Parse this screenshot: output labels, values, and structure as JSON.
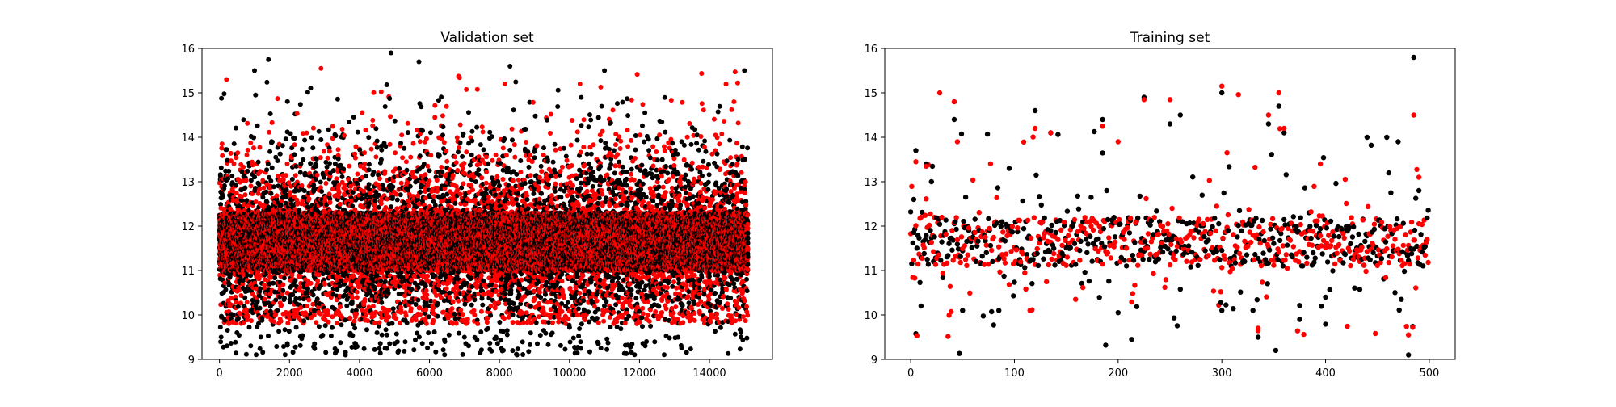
{
  "figure": {
    "background": "#ffffff",
    "marker_colors": [
      "#000000",
      "#ff0000"
    ]
  },
  "chart_data": [
    {
      "type": "scatter",
      "title": "Validation set",
      "xlabel": "",
      "ylabel": "",
      "xlim": [
        -500,
        15800
      ],
      "ylim": [
        9,
        16
      ],
      "xticks": [
        0,
        2000,
        4000,
        6000,
        8000,
        10000,
        12000,
        14000
      ],
      "yticks": [
        9,
        10,
        11,
        12,
        13,
        14,
        15,
        16
      ],
      "grid": false,
      "legend": "none",
      "n_points": 15100,
      "series": [
        {
          "color": "#000000",
          "distribution": {
            "center": 11.6,
            "core_low": 11.0,
            "core_high": 12.3,
            "min": 9.1,
            "max": 15.9
          },
          "outliers": [
            [
              3600,
              9.1
            ],
            [
              8500,
              9.1
            ],
            [
              12200,
              9.4
            ],
            [
              4900,
              15.9
            ],
            [
              1400,
              15.75
            ],
            [
              5700,
              15.7
            ],
            [
              8300,
              15.6
            ],
            [
              11000,
              15.5
            ],
            [
              15000,
              15.5
            ],
            [
              1000,
              15.5
            ],
            [
              13100,
              9.5
            ],
            [
              7900,
              9.5
            ],
            [
              7000,
              9.5
            ],
            [
              4500,
              9.6
            ],
            [
              500,
              9.6
            ]
          ]
        },
        {
          "color": "#ff0000",
          "distribution": {
            "center": 11.6,
            "core_low": 11.0,
            "core_high": 12.3,
            "min": 9.8,
            "max": 15.5
          },
          "outliers": [
            [
              2900,
              15.55
            ],
            [
              200,
              15.3
            ],
            [
              10300,
              15.2
            ],
            [
              14700,
              14.8
            ],
            [
              9700,
              10.0
            ],
            [
              13500,
              9.9
            ]
          ]
        }
      ]
    },
    {
      "type": "scatter",
      "title": "Training set",
      "xlabel": "",
      "ylabel": "",
      "xlim": [
        -25,
        525
      ],
      "ylim": [
        9,
        16
      ],
      "xticks": [
        0,
        100,
        200,
        300,
        400,
        500
      ],
      "yticks": [
        9,
        10,
        11,
        12,
        13,
        14,
        15,
        16
      ],
      "grid": false,
      "legend": "none",
      "n_points": 500,
      "series": [
        {
          "color": "#000000",
          "distribution": {
            "center": 11.6,
            "core_low": 11.1,
            "core_high": 12.2,
            "min": 9.1,
            "max": 15.8
          },
          "highlights": [
            [
              3,
              12.6
            ],
            [
              5,
              13.7
            ],
            [
              10,
              10.2
            ],
            [
              15,
              13.4
            ],
            [
              20,
              13.0
            ],
            [
              42,
              14.4
            ],
            [
              50,
              10.1
            ],
            [
              85,
              10.1
            ],
            [
              95,
              13.3
            ],
            [
              120,
              14.6
            ],
            [
              135,
              14.1
            ],
            [
              185,
              14.4
            ],
            [
              225,
              14.9
            ],
            [
              250,
              14.3
            ],
            [
              260,
              14.5
            ],
            [
              300,
              15.0
            ],
            [
              300,
              10.1
            ],
            [
              330,
              10.1
            ],
            [
              335,
              9.5
            ],
            [
              345,
              14.3
            ],
            [
              355,
              14.7
            ],
            [
              360,
              14.1
            ],
            [
              375,
              9.9
            ],
            [
              400,
              10.4
            ],
            [
              440,
              14.0
            ],
            [
              470,
              13.9
            ],
            [
              480,
              9.1
            ],
            [
              485,
              15.8
            ],
            [
              490,
              12.8
            ]
          ]
        },
        {
          "color": "#ff0000",
          "distribution": {
            "center": 11.6,
            "core_low": 11.1,
            "core_high": 12.2,
            "min": 9.5,
            "max": 15.2
          },
          "highlights": [
            [
              5,
              13.45
            ],
            [
              15,
              13.35
            ],
            [
              42,
              14.8
            ],
            [
              45,
              13.9
            ],
            [
              120,
              14.2
            ],
            [
              135,
              14.1
            ],
            [
              185,
              14.25
            ],
            [
              200,
              13.9
            ],
            [
              225,
              14.85
            ],
            [
              250,
              14.85
            ],
            [
              300,
              15.15
            ],
            [
              305,
              13.65
            ],
            [
              335,
              9.7
            ],
            [
              345,
              14.5
            ],
            [
              355,
              15.0
            ],
            [
              360,
              14.2
            ],
            [
              395,
              13.4
            ],
            [
              480,
              9.55
            ],
            [
              485,
              14.5
            ],
            [
              490,
              13.1
            ]
          ]
        }
      ]
    }
  ]
}
